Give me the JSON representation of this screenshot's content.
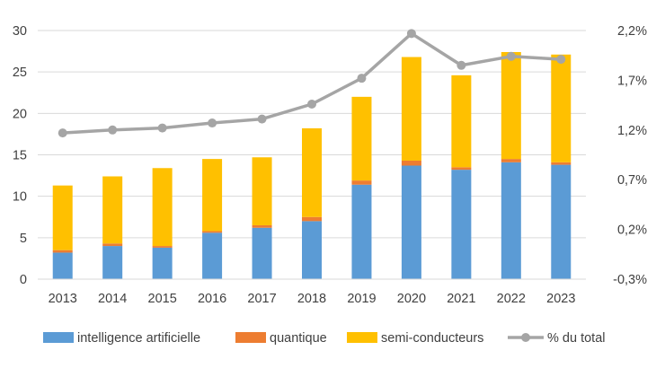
{
  "chart_data": {
    "type": "bar",
    "stacked": true,
    "categories": [
      "2013",
      "2014",
      "2015",
      "2016",
      "2017",
      "2018",
      "2019",
      "2020",
      "2021",
      "2022",
      "2023"
    ],
    "series": [
      {
        "name": "intelligence artificielle",
        "axis": "left",
        "kind": "bar",
        "color": "#5B9BD5",
        "values": [
          3.2,
          4.0,
          3.8,
          5.6,
          6.2,
          7.0,
          11.4,
          13.7,
          13.2,
          14.1,
          13.8
        ]
      },
      {
        "name": "quantique",
        "axis": "left",
        "kind": "bar",
        "color": "#ED7D31",
        "values": [
          0.3,
          0.3,
          0.2,
          0.2,
          0.3,
          0.5,
          0.5,
          0.6,
          0.3,
          0.4,
          0.3
        ]
      },
      {
        "name": "semi-conducteurs",
        "axis": "left",
        "kind": "bar",
        "color": "#FFC000",
        "values": [
          7.8,
          8.1,
          9.4,
          8.7,
          8.2,
          10.7,
          10.1,
          12.5,
          11.1,
          12.9,
          13.0
        ]
      },
      {
        "name": "% du total",
        "axis": "right",
        "kind": "line",
        "color": "#A5A5A5",
        "values": [
          1.17,
          1.2,
          1.22,
          1.27,
          1.31,
          1.46,
          1.72,
          2.17,
          1.85,
          1.94,
          1.91
        ]
      }
    ],
    "y_left": {
      "min": 0,
      "max": 30,
      "ticks": [
        "0",
        "5",
        "10",
        "15",
        "20",
        "25",
        "30"
      ]
    },
    "y_right": {
      "min": -0.3,
      "max": 2.2,
      "ticks": [
        "-0,3%",
        "0,2%",
        "0,7%",
        "1,2%",
        "1,7%",
        "2,2%"
      ]
    },
    "title": "",
    "xlabel": "",
    "ylabel": "",
    "legend_position": "bottom",
    "grid": true
  }
}
